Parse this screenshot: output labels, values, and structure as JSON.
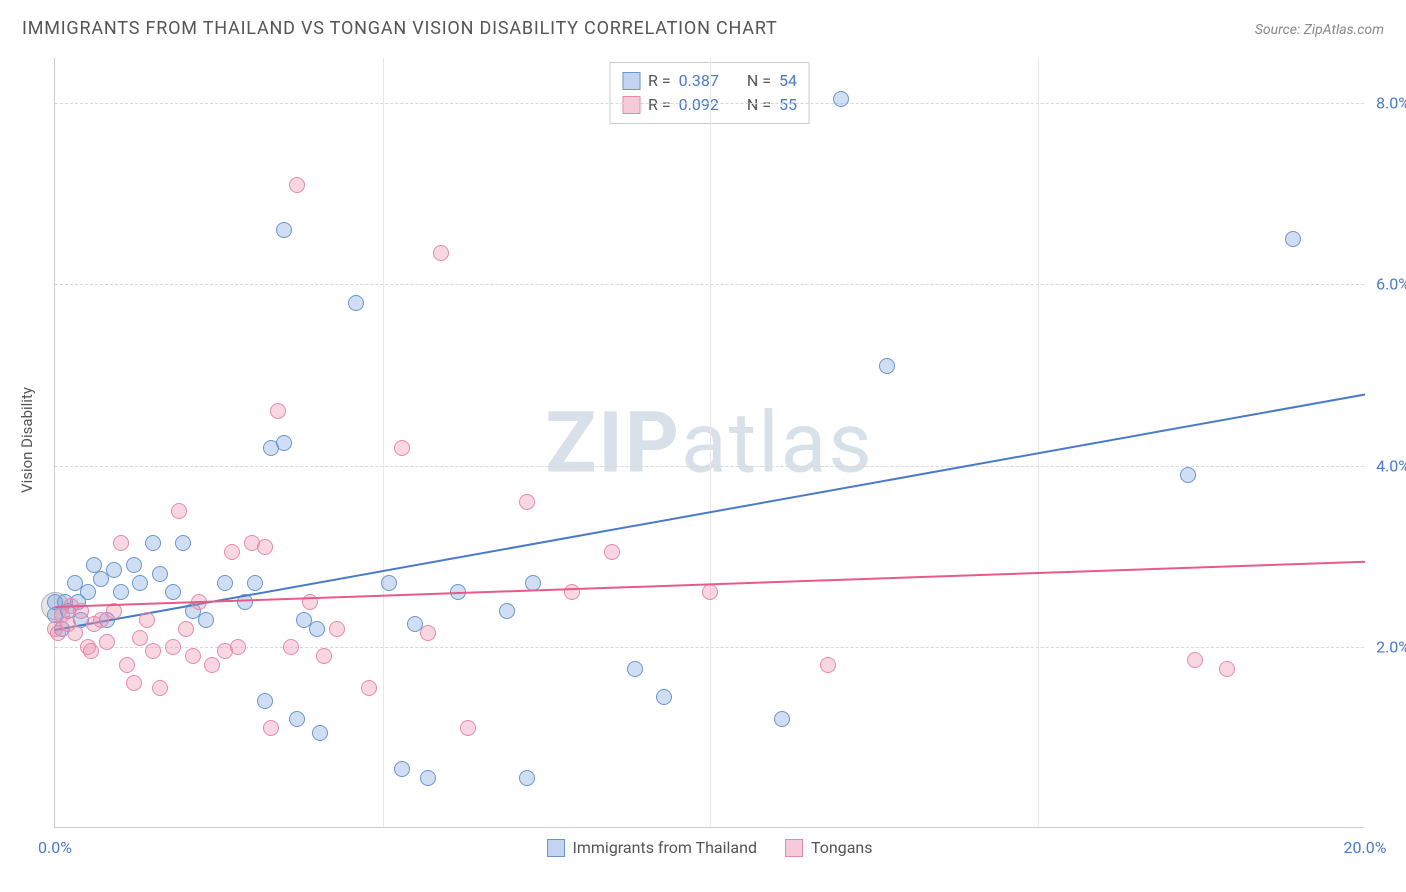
{
  "title": "IMMIGRANTS FROM THAILAND VS TONGAN VISION DISABILITY CORRELATION CHART",
  "source": "Source: ZipAtlas.com",
  "watermark": {
    "bold": "ZIP",
    "rest": "atlas"
  },
  "y_axis_label": "Vision Disability",
  "chart": {
    "type": "scatter",
    "xlim": [
      0,
      20
    ],
    "ylim": [
      0,
      8.5
    ],
    "x_ticks": [
      0,
      5,
      10,
      15,
      20
    ],
    "x_tick_labels": [
      "0.0%",
      "",
      "",
      "",
      "20.0%"
    ],
    "y_ticks": [
      2,
      4,
      6,
      8
    ],
    "y_tick_labels": [
      "2.0%",
      "4.0%",
      "6.0%",
      "8.0%"
    ],
    "grid_h": [
      2,
      4,
      6,
      8
    ],
    "grid_v": [
      5,
      10,
      15
    ],
    "background_color": "#ffffff",
    "grid_color": "#d8d8d8",
    "marker_size": 16,
    "series": [
      {
        "name": "Immigrants from Thailand",
        "color": "#4a7ac7",
        "fill": "rgba(120,160,220,0.35)",
        "stroke": "#6a95d0",
        "R": "0.387",
        "N": "54",
        "trend": {
          "x1": 0,
          "y1": 2.2,
          "x2": 20,
          "y2": 4.8
        },
        "points": [
          [
            0.0,
            2.35
          ],
          [
            0.0,
            2.5
          ],
          [
            0.1,
            2.2
          ],
          [
            0.15,
            2.5
          ],
          [
            0.2,
            2.4
          ],
          [
            0.3,
            2.7
          ],
          [
            0.35,
            2.5
          ],
          [
            0.4,
            2.3
          ],
          [
            0.5,
            2.6
          ],
          [
            0.6,
            2.9
          ],
          [
            0.7,
            2.75
          ],
          [
            0.8,
            2.3
          ],
          [
            0.9,
            2.85
          ],
          [
            1.0,
            2.6
          ],
          [
            1.2,
            2.9
          ],
          [
            1.3,
            2.7
          ],
          [
            1.5,
            3.15
          ],
          [
            1.6,
            2.8
          ],
          [
            1.8,
            2.6
          ],
          [
            1.95,
            3.15
          ],
          [
            2.1,
            2.4
          ],
          [
            2.3,
            2.3
          ],
          [
            2.6,
            2.7
          ],
          [
            2.9,
            2.5
          ],
          [
            3.05,
            2.7
          ],
          [
            3.2,
            1.4
          ],
          [
            3.3,
            4.2
          ],
          [
            3.5,
            4.25
          ],
          [
            3.5,
            6.6
          ],
          [
            3.7,
            1.2
          ],
          [
            3.8,
            2.3
          ],
          [
            4.0,
            2.2
          ],
          [
            4.05,
            1.05
          ],
          [
            4.6,
            5.8
          ],
          [
            5.1,
            2.7
          ],
          [
            5.3,
            0.65
          ],
          [
            5.5,
            2.25
          ],
          [
            5.7,
            0.55
          ],
          [
            6.15,
            2.6
          ],
          [
            6.9,
            2.4
          ],
          [
            7.3,
            2.7
          ],
          [
            7.2,
            0.55
          ],
          [
            8.85,
            1.75
          ],
          [
            9.3,
            1.45
          ],
          [
            11.1,
            1.2
          ],
          [
            12.0,
            8.05
          ],
          [
            12.7,
            5.1
          ],
          [
            17.3,
            3.9
          ],
          [
            18.9,
            6.5
          ]
        ]
      },
      {
        "name": "Tongans",
        "color": "#e75a8a",
        "fill": "rgba(235,140,170,0.35)",
        "stroke": "#e58aac",
        "R": "0.092",
        "N": "55",
        "trend": {
          "x1": 0,
          "y1": 2.45,
          "x2": 20,
          "y2": 2.95
        },
        "points": [
          [
            0.0,
            2.2
          ],
          [
            0.05,
            2.15
          ],
          [
            0.1,
            2.35
          ],
          [
            0.2,
            2.25
          ],
          [
            0.25,
            2.45
          ],
          [
            0.3,
            2.15
          ],
          [
            0.4,
            2.4
          ],
          [
            0.5,
            2.0
          ],
          [
            0.55,
            1.95
          ],
          [
            0.6,
            2.25
          ],
          [
            0.7,
            2.3
          ],
          [
            0.8,
            2.05
          ],
          [
            0.9,
            2.4
          ],
          [
            1.0,
            3.15
          ],
          [
            1.1,
            1.8
          ],
          [
            1.2,
            1.6
          ],
          [
            1.3,
            2.1
          ],
          [
            1.4,
            2.3
          ],
          [
            1.5,
            1.95
          ],
          [
            1.6,
            1.55
          ],
          [
            1.8,
            2.0
          ],
          [
            1.9,
            3.5
          ],
          [
            2.0,
            2.2
          ],
          [
            2.1,
            1.9
          ],
          [
            2.2,
            2.5
          ],
          [
            2.4,
            1.8
          ],
          [
            2.6,
            1.95
          ],
          [
            2.7,
            3.05
          ],
          [
            2.8,
            2.0
          ],
          [
            3.0,
            3.15
          ],
          [
            3.2,
            3.1
          ],
          [
            3.3,
            1.1
          ],
          [
            3.4,
            4.6
          ],
          [
            3.6,
            2.0
          ],
          [
            3.7,
            7.1
          ],
          [
            3.9,
            2.5
          ],
          [
            4.1,
            1.9
          ],
          [
            4.3,
            2.2
          ],
          [
            4.8,
            1.55
          ],
          [
            5.3,
            4.2
          ],
          [
            5.7,
            2.15
          ],
          [
            5.9,
            6.35
          ],
          [
            6.3,
            1.1
          ],
          [
            7.2,
            3.6
          ],
          [
            7.9,
            2.6
          ],
          [
            8.5,
            3.05
          ],
          [
            10.0,
            2.6
          ],
          [
            11.8,
            1.8
          ],
          [
            17.4,
            1.85
          ],
          [
            17.9,
            1.75
          ]
        ]
      }
    ]
  },
  "legend_top": {
    "rows": [
      {
        "swatch_fill": "rgba(120,160,220,0.45)",
        "swatch_border": "#6a95d0",
        "r_label": "R =",
        "r_val": "0.387",
        "n_label": "N =",
        "n_val": "54"
      },
      {
        "swatch_fill": "rgba(235,140,170,0.45)",
        "swatch_border": "#e58aac",
        "r_label": "R =",
        "r_val": "0.092",
        "n_label": "N =",
        "n_val": "55"
      }
    ]
  },
  "legend_bottom": [
    {
      "swatch_fill": "rgba(120,160,220,0.45)",
      "swatch_border": "#6a95d0",
      "label": "Immigrants from Thailand"
    },
    {
      "swatch_fill": "rgba(235,140,170,0.45)",
      "swatch_border": "#e58aac",
      "label": "Tongans"
    }
  ]
}
